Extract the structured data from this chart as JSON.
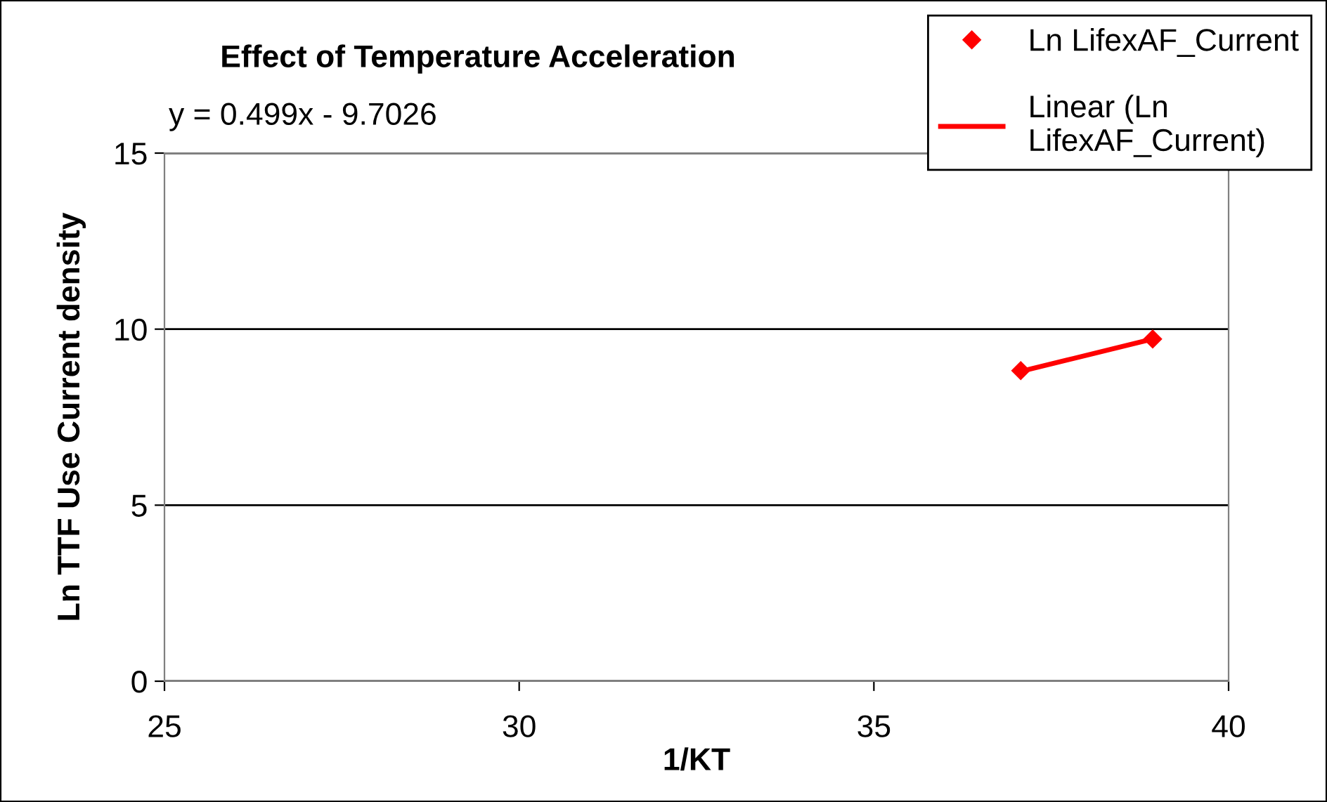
{
  "chart_data": {
    "type": "scatter",
    "title": "Effect of Temperature Acceleration",
    "xlabel": "1/KT",
    "ylabel": "Ln TTF Use Current density",
    "annotations": [
      "y = 0.499x - 9.7026"
    ],
    "x": [
      37.07,
      38.93
    ],
    "series": [
      {
        "name": "Ln LifexAF_Current",
        "color": "#ff0000",
        "marker": "diamond",
        "values": [
          8.82,
          9.72
        ]
      },
      {
        "name": "Linear (Ln LifexAF_Current)",
        "type": "line",
        "color": "#ff0000",
        "line_style": "solid",
        "values": [
          8.8,
          9.72
        ]
      }
    ],
    "xlim": [
      25,
      40
    ],
    "xticks": [
      25,
      30,
      35,
      40
    ],
    "ylim": [
      0,
      15
    ],
    "yticks": [
      0,
      5,
      10,
      15
    ],
    "grid": "y",
    "legend": "top right"
  }
}
